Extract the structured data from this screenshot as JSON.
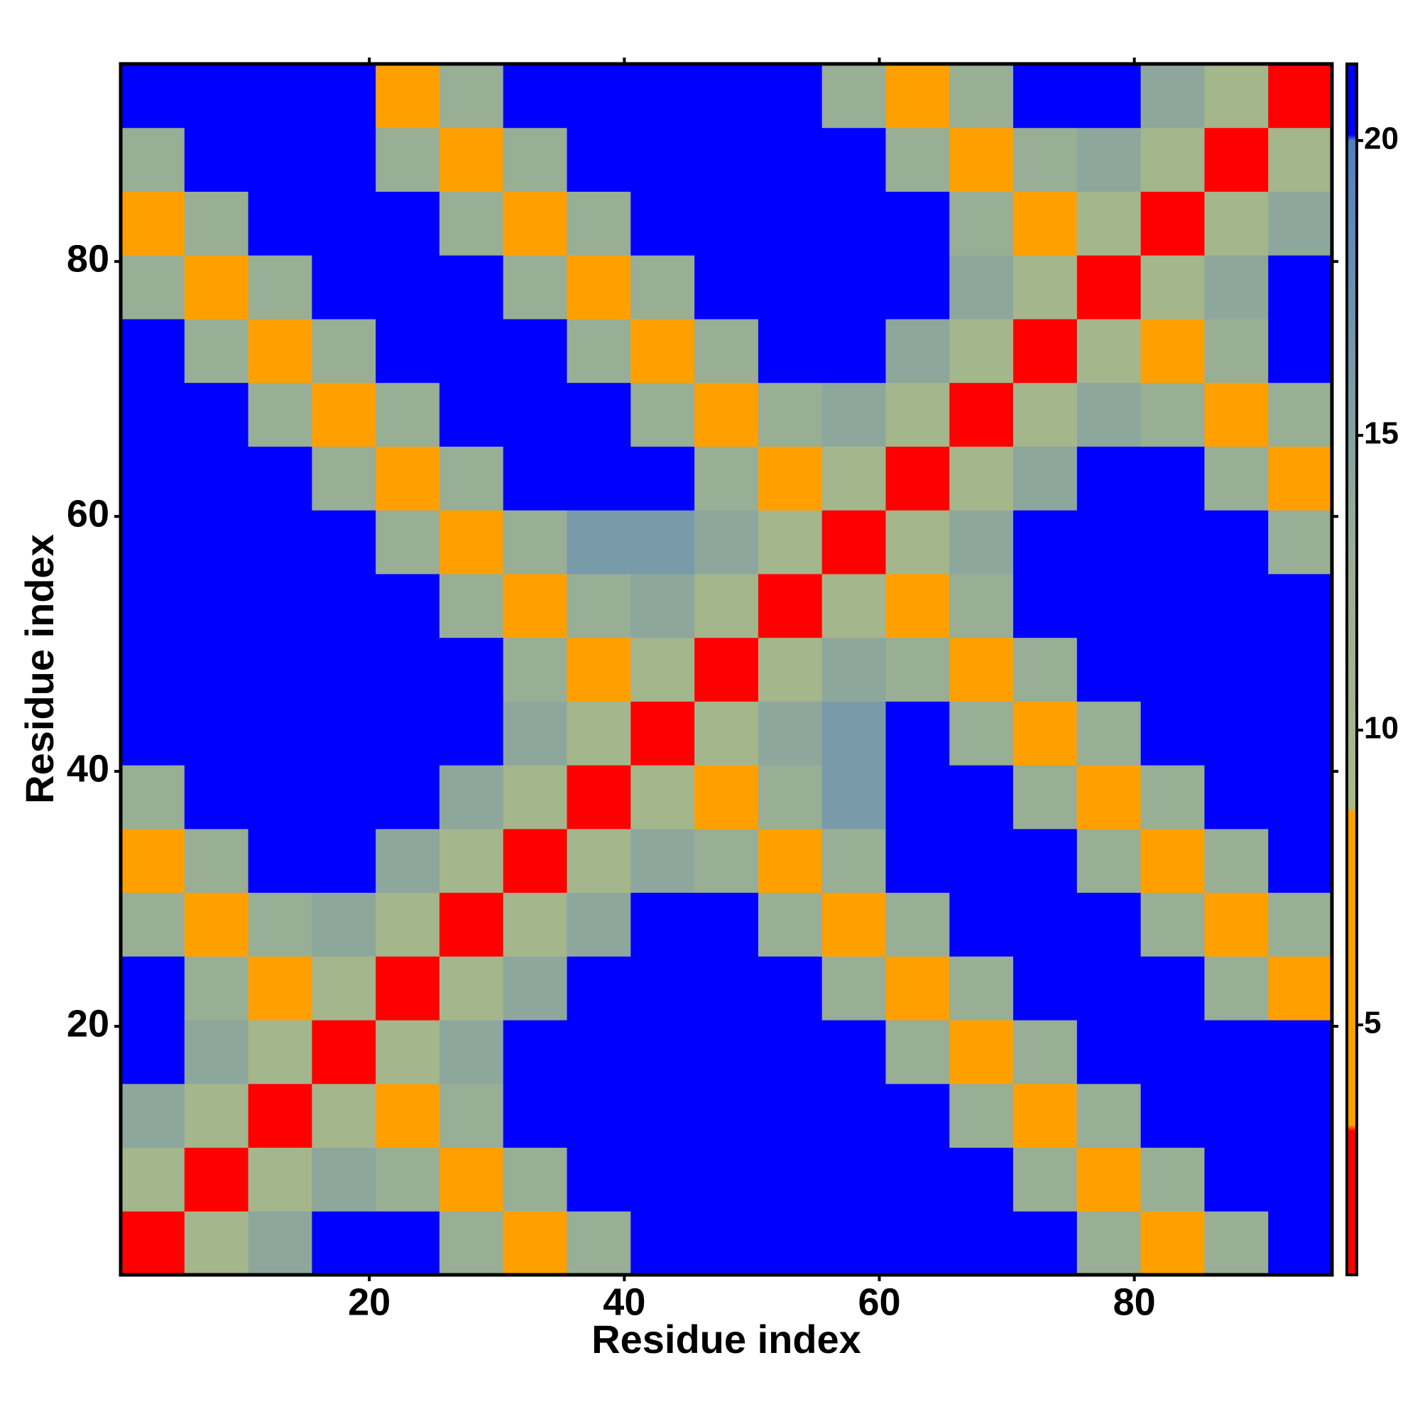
{
  "chart_data": {
    "type": "heatmap",
    "xlabel": "Residue index",
    "ylabel": "Residue index",
    "x": [
      3,
      8,
      13,
      18,
      23,
      28,
      33,
      38,
      43,
      48,
      53,
      58,
      63,
      68,
      73,
      78,
      83,
      88,
      93
    ],
    "y": [
      3,
      8,
      13,
      18,
      23,
      28,
      33,
      38,
      43,
      48,
      53,
      58,
      63,
      68,
      73,
      78,
      83,
      88,
      93
    ],
    "xlim": [
      0.5,
      95.5
    ],
    "ylim": [
      0.5,
      95.5
    ],
    "xticks": [
      20,
      40,
      60,
      80
    ],
    "yticks": [
      20,
      40,
      60,
      80
    ],
    "zlim": [
      0.76,
      21.3
    ],
    "zticks": [
      5,
      10,
      15,
      20
    ],
    "colorscale": [
      [
        0.76,
        "#ff0000"
      ],
      [
        3.2,
        "#ff0000"
      ],
      [
        3.3,
        "#ffa000"
      ],
      [
        8.6,
        "#ffa000"
      ],
      [
        8.7,
        "#a9ba88"
      ],
      [
        13,
        "#98ae95"
      ],
      [
        20,
        "#4f7fc3"
      ],
      [
        20.1,
        "#0000ff"
      ],
      [
        21.3,
        "#0000ff"
      ]
    ],
    "z": [
      [
        2,
        10,
        14,
        21,
        21,
        13,
        7,
        13,
        21,
        21,
        21,
        21,
        21,
        21,
        21,
        13,
        7,
        13,
        21
      ],
      [
        10,
        2,
        10,
        14,
        13,
        7,
        13,
        21,
        21,
        21,
        21,
        21,
        21,
        21,
        13,
        7,
        13,
        21,
        21
      ],
      [
        14,
        10,
        2,
        10,
        7,
        13,
        21,
        21,
        21,
        21,
        21,
        21,
        21,
        13,
        7,
        13,
        21,
        21,
        21
      ],
      [
        21,
        14,
        10,
        2,
        10,
        14,
        21,
        21,
        21,
        21,
        21,
        21,
        13,
        7,
        13,
        21,
        21,
        21,
        21
      ],
      [
        21,
        13,
        7,
        10,
        2,
        10,
        14,
        21,
        21,
        21,
        21,
        13,
        7,
        13,
        21,
        21,
        21,
        13,
        7
      ],
      [
        13,
        7,
        13,
        14,
        10,
        2,
        10,
        14,
        21,
        21,
        13,
        7,
        13,
        21,
        21,
        21,
        13,
        7,
        13
      ],
      [
        7,
        13,
        21,
        21,
        14,
        10,
        2,
        10,
        14,
        13,
        7,
        13,
        21,
        21,
        21,
        13,
        7,
        13,
        21
      ],
      [
        13,
        21,
        21,
        21,
        21,
        14,
        10,
        2,
        10,
        7,
        13,
        16,
        21,
        21,
        13,
        7,
        13,
        21,
        21
      ],
      [
        21,
        21,
        21,
        21,
        21,
        21,
        14,
        10,
        2,
        10,
        14,
        16,
        21,
        13,
        7,
        13,
        21,
        21,
        21
      ],
      [
        21,
        21,
        21,
        21,
        21,
        21,
        13,
        7,
        10,
        2,
        10,
        14,
        13,
        7,
        13,
        21,
        21,
        21,
        21
      ],
      [
        21,
        21,
        21,
        21,
        21,
        13,
        7,
        13,
        14,
        10,
        2,
        10,
        7,
        13,
        21,
        21,
        21,
        21,
        21
      ],
      [
        21,
        21,
        21,
        21,
        13,
        7,
        13,
        16,
        16,
        14,
        10,
        2,
        10,
        14,
        21,
        21,
        21,
        21,
        13
      ],
      [
        21,
        21,
        21,
        13,
        7,
        13,
        21,
        21,
        21,
        13,
        7,
        10,
        2,
        10,
        14,
        21,
        21,
        13,
        7
      ],
      [
        21,
        21,
        13,
        7,
        13,
        21,
        21,
        21,
        13,
        7,
        13,
        14,
        10,
        2,
        10,
        14,
        13,
        7,
        13
      ],
      [
        21,
        13,
        7,
        13,
        21,
        21,
        21,
        13,
        7,
        13,
        21,
        21,
        14,
        10,
        2,
        10,
        7,
        13,
        21
      ],
      [
        13,
        7,
        13,
        21,
        21,
        21,
        13,
        7,
        13,
        21,
        21,
        21,
        21,
        14,
        10,
        2,
        10,
        14,
        21
      ],
      [
        7,
        13,
        21,
        21,
        21,
        13,
        7,
        13,
        21,
        21,
        21,
        21,
        21,
        13,
        7,
        10,
        2,
        10,
        14
      ],
      [
        13,
        21,
        21,
        21,
        13,
        7,
        13,
        21,
        21,
        21,
        21,
        21,
        13,
        7,
        13,
        14,
        10,
        2,
        10
      ],
      [
        21,
        21,
        21,
        21,
        7,
        13,
        21,
        21,
        21,
        21,
        21,
        13,
        7,
        13,
        21,
        21,
        14,
        10,
        2
      ]
    ]
  }
}
